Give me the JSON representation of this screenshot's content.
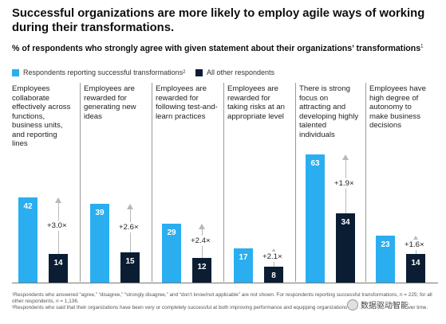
{
  "title": "Successful organizations are more likely to employ agile ways of working during their transformations.",
  "subtitle": "% of respondents who strongly agree with given statement about their organizations’ transformations",
  "subtitle_sup": "1",
  "legend": [
    {
      "label": "Respondents reporting successful transformations",
      "sup": "2",
      "color": "#2aaef0"
    },
    {
      "label": "All other respondents",
      "sup": "",
      "color": "#0b1d33"
    }
  ],
  "chart_data": {
    "type": "bar",
    "categories": [
      "Employees collaborate effectively across functions, business units, and reporting lines",
      "Employees are rewarded for generating new ideas",
      "Employees are rewarded for following test-and-learn practices",
      "Employees are rewarded for taking risks at an appropriate level",
      "There is strong focus on attracting and developing highly talented individuals",
      "Employees have high degree of autonomy to make business decisions"
    ],
    "series": [
      {
        "name": "Respondents reporting successful transformations",
        "values": [
          42,
          39,
          29,
          17,
          63,
          23
        ]
      },
      {
        "name": "All other respondents",
        "values": [
          14,
          15,
          12,
          8,
          34,
          14
        ]
      }
    ],
    "multipliers": [
      "+3.0×",
      "+2.6×",
      "+2.4×",
      "+2.1×",
      "+1.9×",
      "+1.6×"
    ],
    "colors": {
      "successful": "#2aaef0",
      "other": "#0b1d33"
    }
  },
  "footnotes": [
    "¹Respondents who answered “agree,” “disagree,” “strongly disagree,” and “don’t know/not applicable” are not shown. For respondents reporting successful transformations, n = 225; for all other respondents, n = 1,136.",
    "²Respondents who said that their organizations have been very or completely successful at both improving performance and equipping organizations to sustain improvements over time."
  ],
  "watermark": "数据驱动智能"
}
